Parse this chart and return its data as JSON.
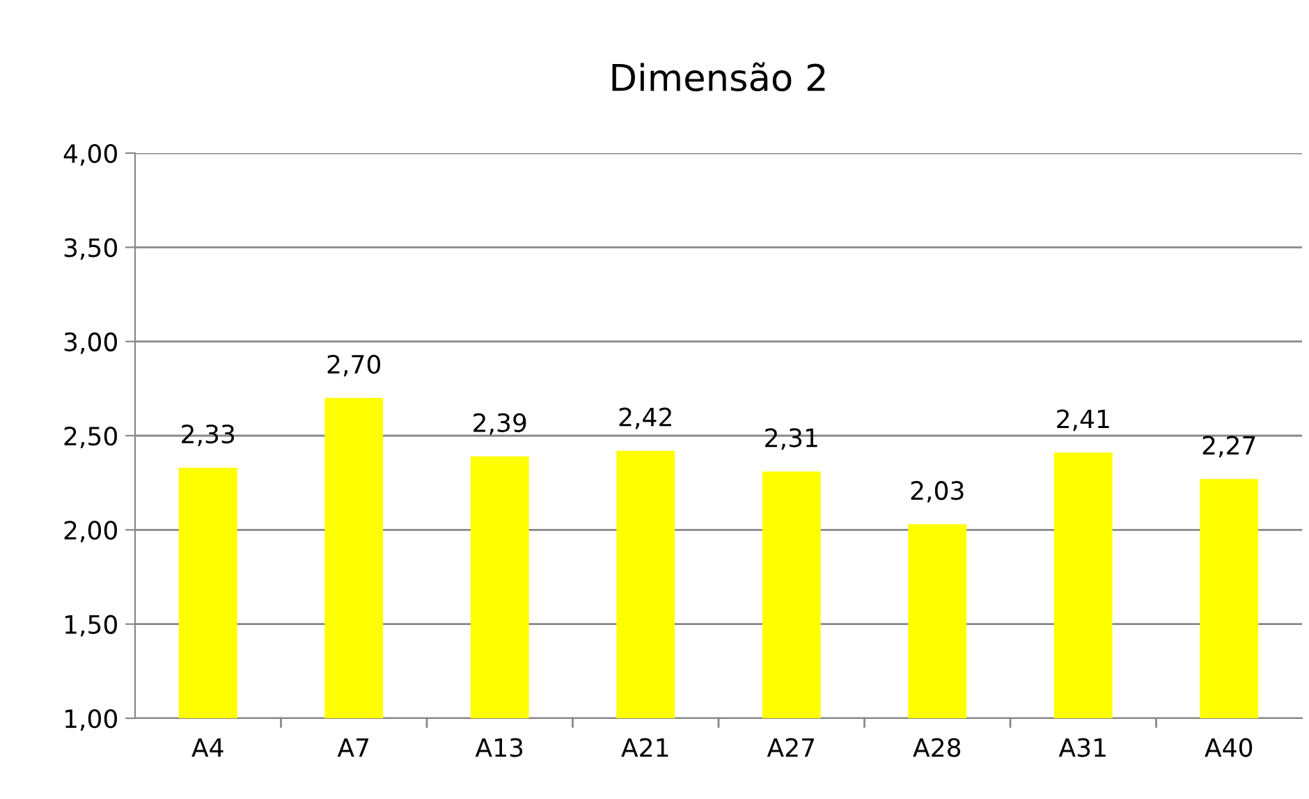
{
  "chart_data": {
    "type": "bar",
    "title": "Dimensão 2",
    "categories": [
      "A4",
      "A7",
      "A13",
      "A21",
      "A27",
      "A28",
      "A31",
      "A40"
    ],
    "values": [
      2.33,
      2.7,
      2.39,
      2.42,
      2.31,
      2.03,
      2.41,
      2.27
    ],
    "value_labels": [
      "2,33",
      "2,70",
      "2,39",
      "2,42",
      "2,31",
      "2,03",
      "2,41",
      "2,27"
    ],
    "color": "#ffff00",
    "ylim": [
      1.0,
      4.0
    ],
    "yticks": [
      {
        "value": 1.0,
        "label": "1,00"
      },
      {
        "value": 1.5,
        "label": "1,50"
      },
      {
        "value": 2.0,
        "label": "2,00"
      },
      {
        "value": 2.5,
        "label": "2,50"
      },
      {
        "value": 3.0,
        "label": "3,00"
      },
      {
        "value": 3.5,
        "label": "3,50"
      },
      {
        "value": 4.0,
        "label": "4,00"
      }
    ],
    "grid": "y"
  }
}
